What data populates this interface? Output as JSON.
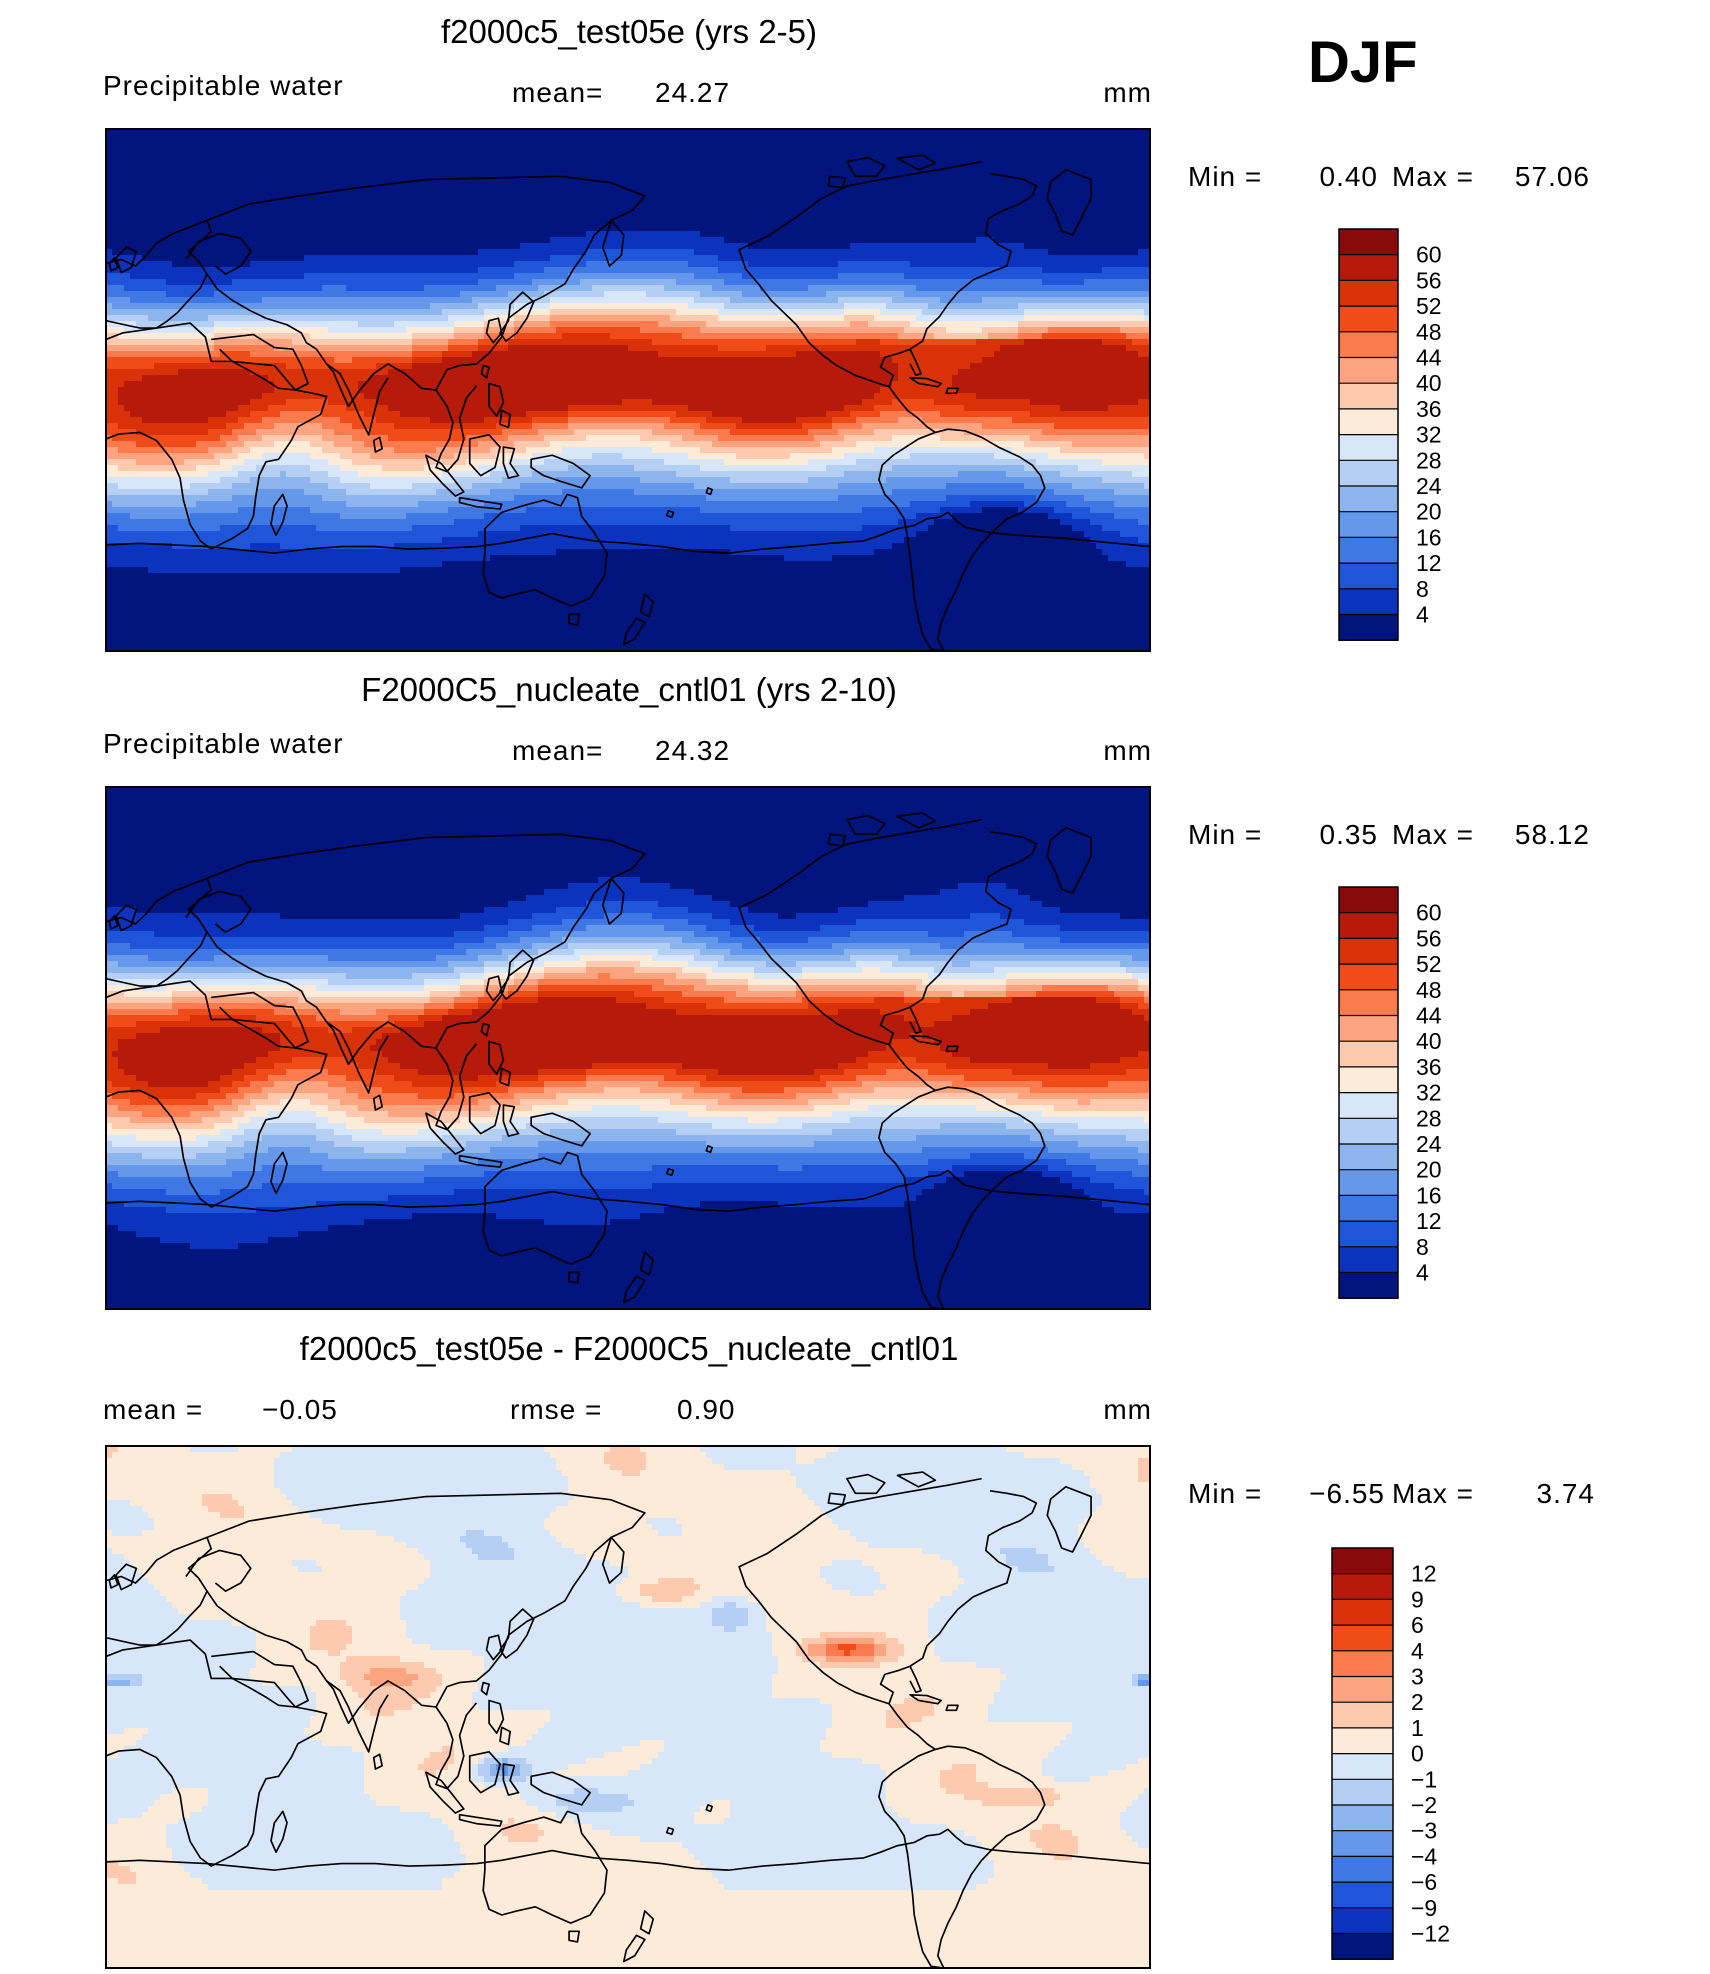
{
  "season": "DJF",
  "colors": {
    "coast": "#000000",
    "frame": "#000000"
  },
  "panels": [
    {
      "title": "f2000c5_test05e (yrs 2-5)",
      "left_label": "Precipitable  water",
      "mid_label": "mean=",
      "mid_value": "24.27",
      "units": "mm",
      "min_label": "Min  =",
      "min_value": "0.40",
      "max_label": "Max  =",
      "max_value": "57.06",
      "kind": "abs",
      "variant": 0,
      "colorbar": {
        "labels": [
          "60",
          "56",
          "52",
          "48",
          "44",
          "40",
          "36",
          "32",
          "28",
          "24",
          "20",
          "16",
          "12",
          "8",
          "4"
        ],
        "colors": [
          "#8a0a0c",
          "#b51a0b",
          "#d93208",
          "#f04c1a",
          "#fb7a4e",
          "#fca37f",
          "#fdcab0",
          "#fdebd9",
          "#d7e6f8",
          "#b4cff3",
          "#8cb5ee",
          "#6597ea",
          "#3f77e4",
          "#1f55d8",
          "#0c33bd",
          "#02157f"
        ]
      }
    },
    {
      "title": "F2000C5_nucleate_cntl01 (yrs 2-10)",
      "left_label": "Precipitable  water",
      "mid_label": "mean=",
      "mid_value": "24.32",
      "units": "mm",
      "min_label": "Min  =",
      "min_value": "0.35",
      "max_label": "Max  =",
      "max_value": "58.12",
      "kind": "abs",
      "variant": 1,
      "colorbar": {
        "labels": [
          "60",
          "56",
          "52",
          "48",
          "44",
          "40",
          "36",
          "32",
          "28",
          "24",
          "20",
          "16",
          "12",
          "8",
          "4"
        ],
        "colors": [
          "#8a0a0c",
          "#b51a0b",
          "#d93208",
          "#f04c1a",
          "#fb7a4e",
          "#fca37f",
          "#fdcab0",
          "#fdebd9",
          "#d7e6f8",
          "#b4cff3",
          "#8cb5ee",
          "#6597ea",
          "#3f77e4",
          "#1f55d8",
          "#0c33bd",
          "#02157f"
        ]
      }
    },
    {
      "title": "f2000c5_test05e - F2000C5_nucleate_cntl01",
      "left_label": "mean  =",
      "left_value": "−0.05",
      "mid_label": "rmse  =",
      "mid_value": "0.90",
      "units": "mm",
      "min_label": "Min  =",
      "min_value": "−6.55",
      "max_label": "Max  =",
      "max_value": "3.74",
      "kind": "diff",
      "variant": 2,
      "colorbar": {
        "labels": [
          "12",
          "9",
          "6",
          "4",
          "3",
          "2",
          "1",
          "0",
          "−1",
          "−2",
          "−3",
          "−4",
          "−6",
          "−9",
          "−12"
        ],
        "colors": [
          "#8a0a0c",
          "#b51a0b",
          "#d93208",
          "#f04c1a",
          "#fb7a4e",
          "#fca37f",
          "#fdcab0",
          "#fdebd9",
          "#d7e6f8",
          "#b4cff3",
          "#8cb5ee",
          "#6597ea",
          "#3f77e4",
          "#1f55d8",
          "#0c33bd",
          "#02157f"
        ]
      }
    }
  ]
}
